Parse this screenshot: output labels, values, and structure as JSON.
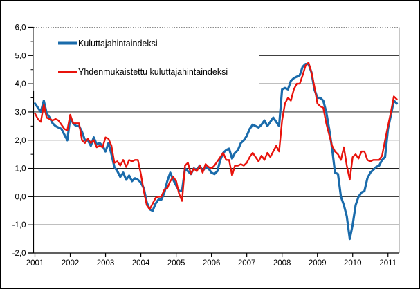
{
  "chart_data": {
    "type": "line",
    "title": "",
    "x_start": "2001-01",
    "x_end": "2011-04",
    "points_per_year": 12,
    "grid": "horizontal",
    "legend_position": "top-left",
    "x_axis": {
      "tick_labels": [
        "2001",
        "2002",
        "2003",
        "2004",
        "2005",
        "2006",
        "2007",
        "2008",
        "2009",
        "2010",
        "2011"
      ]
    },
    "y_axis": {
      "tick_labels": [
        "6,0",
        "5,0",
        "4,0",
        "3,0",
        "2,0",
        "1,0",
        "0,0",
        "-1,0",
        "-2,0"
      ],
      "tick_values": [
        6,
        5,
        4,
        3,
        2,
        1,
        0,
        -1,
        -2
      ],
      "range": [
        -2,
        6
      ]
    },
    "series": [
      {
        "name": "Kuluttajahintaindeksi",
        "color": "#1a6bab",
        "values": [
          3.3,
          3.15,
          3.0,
          3.4,
          2.95,
          2.8,
          2.6,
          2.5,
          2.45,
          2.4,
          2.2,
          2.0,
          2.8,
          2.6,
          2.5,
          2.5,
          2.3,
          2.0,
          2.0,
          1.8,
          2.1,
          1.85,
          1.9,
          1.8,
          1.6,
          1.9,
          1.5,
          1.05,
          0.9,
          0.7,
          0.85,
          0.6,
          0.75,
          0.55,
          0.65,
          0.6,
          0.5,
          0.3,
          -0.2,
          -0.45,
          -0.5,
          -0.25,
          -0.1,
          -0.1,
          0.15,
          0.55,
          0.85,
          0.6,
          0.4,
          0.2,
          0.2,
          1.0,
          0.9,
          0.8,
          1.0,
          0.95,
          1.1,
          0.9,
          1.05,
          1.0,
          0.85,
          0.8,
          0.9,
          1.3,
          1.55,
          1.65,
          1.7,
          1.35,
          1.55,
          1.65,
          1.9,
          2.0,
          2.15,
          2.4,
          2.55,
          2.5,
          2.45,
          2.55,
          2.7,
          2.5,
          2.65,
          2.8,
          2.65,
          2.5,
          3.8,
          3.85,
          3.8,
          4.1,
          4.2,
          4.25,
          4.3,
          4.6,
          4.7,
          4.7,
          4.4,
          3.8,
          3.5,
          3.5,
          3.4,
          3.0,
          2.4,
          1.7,
          0.85,
          0.8,
          0.0,
          -0.3,
          -0.7,
          -1.5,
          -1.0,
          -0.3,
          0.0,
          0.15,
          0.2,
          0.65,
          0.85,
          0.95,
          1.05,
          1.1,
          1.3,
          1.4,
          2.4,
          2.9,
          3.4,
          3.3
        ]
      },
      {
        "name": "Yhdenmukaistettu kuluttajahintaindeksi",
        "color": "#e8130c",
        "values": [
          2.95,
          2.75,
          2.65,
          3.25,
          2.8,
          2.75,
          2.7,
          2.75,
          2.7,
          2.55,
          2.4,
          2.35,
          2.9,
          2.6,
          2.6,
          2.6,
          2.0,
          1.9,
          2.05,
          1.9,
          2.0,
          1.75,
          1.8,
          1.75,
          2.1,
          2.05,
          1.8,
          1.2,
          1.25,
          1.1,
          1.3,
          1.05,
          1.3,
          1.25,
          1.3,
          1.3,
          0.8,
          0.2,
          -0.3,
          -0.45,
          -0.25,
          -0.05,
          0.0,
          0.0,
          0.25,
          0.3,
          0.55,
          0.7,
          0.55,
          0.1,
          -0.15,
          1.1,
          1.2,
          0.8,
          1.0,
          0.9,
          1.1,
          0.85,
          1.15,
          1.05,
          1.0,
          1.1,
          1.25,
          1.4,
          1.55,
          1.3,
          1.3,
          0.75,
          1.1,
          1.1,
          1.15,
          1.1,
          1.2,
          1.4,
          1.55,
          1.4,
          1.25,
          1.45,
          1.3,
          1.55,
          1.4,
          1.6,
          1.8,
          1.6,
          2.7,
          3.3,
          3.5,
          3.4,
          3.8,
          4.0,
          4.0,
          4.3,
          4.65,
          4.75,
          4.4,
          3.9,
          3.3,
          3.2,
          3.15,
          2.6,
          2.2,
          1.8,
          1.6,
          1.5,
          1.3,
          1.75,
          1.1,
          0.6,
          1.4,
          1.5,
          1.35,
          1.6,
          1.6,
          1.3,
          1.25,
          1.3,
          1.3,
          1.3,
          1.45,
          2.0,
          2.5,
          3.0,
          3.55,
          3.45
        ]
      }
    ],
    "colors": {
      "gridline": "#000000",
      "plot_border": "#8c8c8c",
      "axis": "#000000",
      "background": "#ffffff"
    }
  }
}
